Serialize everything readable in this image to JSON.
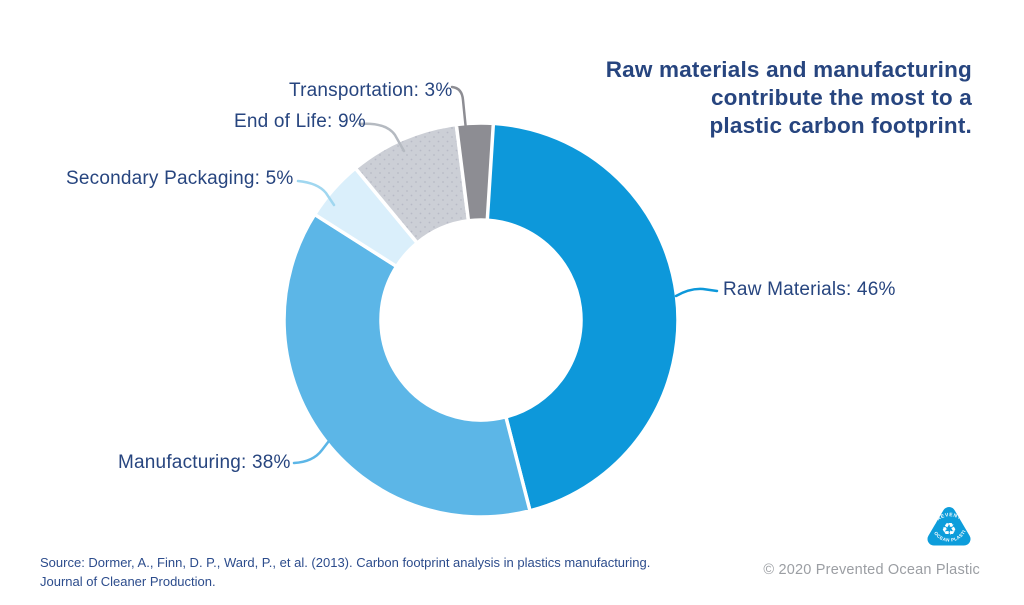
{
  "headline": {
    "lines": [
      "Raw materials and manufacturing",
      "contribute the most to a",
      "plastic carbon footprint."
    ],
    "color": "#27457f"
  },
  "chart_data": {
    "type": "pie",
    "subtype": "donut",
    "title": "Raw materials and manufacturing contribute the most to a plastic carbon footprint.",
    "categories": [
      "Raw Materials",
      "Manufacturing",
      "Secondary Packaging",
      "End of Life",
      "Transportation"
    ],
    "values": [
      46,
      38,
      5,
      9,
      3
    ],
    "unit": "%",
    "start_angle_deg": 0,
    "clockwise": true,
    "inner_radius_ratio": 0.51,
    "legend_position": "callout-labels",
    "segments": [
      {
        "label": "Raw Materials",
        "value": 46,
        "display": "Raw Materials: 46%",
        "color": "#0d98da",
        "leader_color": "#0d98da",
        "texture": "solid"
      },
      {
        "label": "Manufacturing",
        "value": 38,
        "display": "Manufacturing: 38%",
        "color": "#5cb6e7",
        "leader_color": "#5cb6e7",
        "texture": "solid"
      },
      {
        "label": "Secondary Packaging",
        "value": 5,
        "display": "Secondary Packaging: 5%",
        "color": "#daeffb",
        "leader_color": "#a0d7f0",
        "texture": "solid"
      },
      {
        "label": "End of Life",
        "value": 9,
        "display": "End of Life: 9%",
        "color": "#cccfd6",
        "leader_color": "#b5bac1",
        "texture": "dotted",
        "dot_color": "#b7bac6"
      },
      {
        "label": "Transportation",
        "value": 3,
        "display": "Transportation: 3%",
        "color": "#8d8d93",
        "leader_color": "#8d8d93",
        "texture": "solid"
      }
    ],
    "label_color": "#27457f"
  },
  "source": {
    "lines": [
      "Source: Dormer, A., Finn, D. P., Ward, P., et al. (2013). Carbon footprint analysis in plastics manufacturing.",
      "Journal of Cleaner Production."
    ],
    "color": "#2c4c8c"
  },
  "footer": {
    "copyright": "© 2020 Prevented Ocean Plastic",
    "copyright_color": "#9b9ea3",
    "logo": {
      "text_top": "PREVENTED",
      "text_bottom": "OCEAN PLASTIC",
      "symbol": "recycling-arrows",
      "color": "#0d9ddb"
    }
  }
}
